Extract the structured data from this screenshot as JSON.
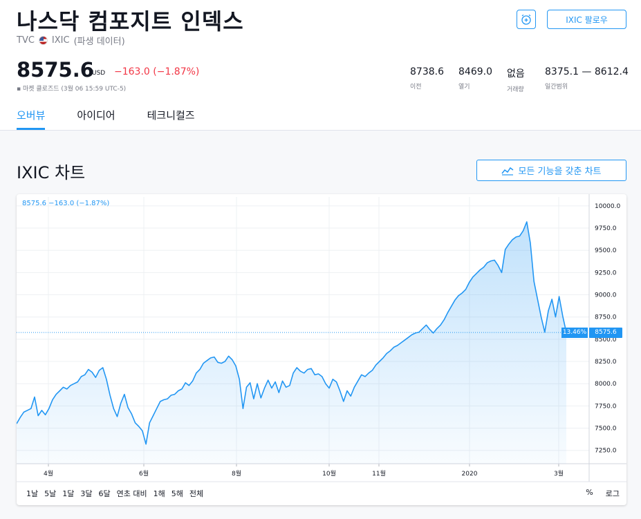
{
  "header": {
    "title": "나스닥 컴포지트 인덱스",
    "source": "TVC",
    "symbol": "IXIC",
    "data_type": "(파생 데이터)",
    "follow_label": "IXIC 팔로우",
    "alarm_icon": "alarm-clock-plus-icon"
  },
  "quote": {
    "price": "8575.6",
    "currency": "USD",
    "change": "−163.0 (−1.87%)",
    "status": "▪ 마켓 클로즈드 (3월 06 15:59 UTC-5)",
    "change_color": "#f23645"
  },
  "stats": [
    {
      "value": "8738.6",
      "label": "이전"
    },
    {
      "value": "8469.0",
      "label": "열기"
    },
    {
      "value": "없음",
      "label": "거래량"
    },
    {
      "value": "8375.1 — 8612.4",
      "label": "일간범위"
    }
  ],
  "tabs": [
    {
      "label": "오버뷰",
      "active": true
    },
    {
      "label": "아이디어",
      "active": false
    },
    {
      "label": "테크니컬즈",
      "active": false
    }
  ],
  "chart_section": {
    "title": "IXIC 차트",
    "full_chart_label": "모든 기능을 갖춘 차트",
    "legend": "8575.6  −163.0 (−1.87%)",
    "last_price_tag": "8575.6",
    "percent_tag": "13.46%",
    "ranges": [
      "1날",
      "5날",
      "1달",
      "3달",
      "6달",
      "연초 대비",
      "1해",
      "5해",
      "전체"
    ],
    "scale_buttons": [
      "%",
      "로그"
    ],
    "accent_color": "#2196f3"
  },
  "chart_data": {
    "type": "area",
    "x_ticks": [
      "4월",
      "6월",
      "8월",
      "10월",
      "11월",
      "2020",
      "3월"
    ],
    "y_ticks": [
      7250.0,
      7500.0,
      7750.0,
      8000.0,
      8250.0,
      8500.0,
      8750.0,
      9000.0,
      9250.0,
      9500.0,
      9750.0,
      10000.0
    ],
    "ylim": [
      7100,
      10100
    ],
    "last_value": 8575.6,
    "values": [
      7550,
      7620,
      7680,
      7700,
      7720,
      7850,
      7640,
      7700,
      7650,
      7720,
      7820,
      7880,
      7920,
      7960,
      7940,
      7980,
      8000,
      8020,
      8080,
      8100,
      8160,
      8130,
      8070,
      8150,
      8180,
      8050,
      7870,
      7720,
      7630,
      7780,
      7880,
      7730,
      7660,
      7560,
      7520,
      7470,
      7320,
      7560,
      7640,
      7720,
      7800,
      7820,
      7830,
      7870,
      7880,
      7920,
      7940,
      8010,
      7980,
      8030,
      8120,
      8160,
      8230,
      8260,
      8290,
      8300,
      8240,
      8230,
      8250,
      8310,
      8270,
      8200,
      8050,
      7720,
      7960,
      8010,
      7830,
      8000,
      7840,
      7950,
      8040,
      7950,
      8020,
      7900,
      8030,
      7960,
      7980,
      8120,
      8180,
      8140,
      8120,
      8160,
      8170,
      8100,
      8110,
      8080,
      8000,
      7950,
      8050,
      8020,
      7920,
      7800,
      7920,
      7860,
      7960,
      8030,
      8100,
      8080,
      8120,
      8150,
      8210,
      8250,
      8290,
      8340,
      8370,
      8410,
      8430,
      8460,
      8490,
      8520,
      8550,
      8570,
      8580,
      8620,
      8660,
      8610,
      8570,
      8620,
      8660,
      8720,
      8800,
      8870,
      8940,
      8990,
      9020,
      9060,
      9140,
      9200,
      9240,
      9280,
      9310,
      9360,
      9380,
      9390,
      9330,
      9250,
      9510,
      9570,
      9620,
      9650,
      9660,
      9720,
      9820,
      9580,
      9150,
      8950,
      8750,
      8580,
      8820,
      8950,
      8750,
      8980,
      8760,
      8575.6
    ]
  }
}
